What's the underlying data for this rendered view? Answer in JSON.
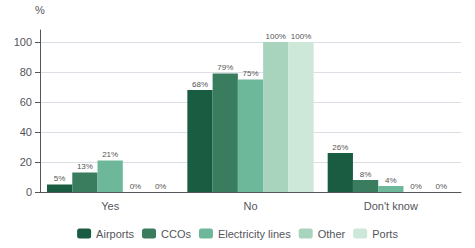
{
  "chart_data": {
    "type": "bar",
    "categories": [
      "Yes",
      "No",
      "Don't know"
    ],
    "series": [
      {
        "name": "Airports",
        "color": "#1a5c42",
        "values": [
          5,
          68,
          26
        ],
        "value_labels": [
          "5%",
          "68%",
          "26%"
        ]
      },
      {
        "name": "CCOs",
        "color": "#3a7d5e",
        "values": [
          13,
          79,
          8
        ],
        "value_labels": [
          "13%",
          "79%",
          "8%"
        ]
      },
      {
        "name": "Electricity lines",
        "color": "#6db89a",
        "values": [
          21,
          75,
          4
        ],
        "value_labels": [
          "21%",
          "75%",
          "4%"
        ]
      },
      {
        "name": "Other",
        "color": "#a8d4be",
        "values": [
          0,
          100,
          0
        ],
        "value_labels": [
          "0%",
          "100%",
          "0%"
        ]
      },
      {
        "name": "Ports",
        "color": "#cde8d8",
        "values": [
          0,
          100,
          0
        ],
        "value_labels": [
          "0%",
          "100%",
          "0%"
        ]
      }
    ],
    "ylabel": "%",
    "ylim": [
      0,
      108
    ],
    "yticks": [
      0,
      20,
      40,
      60,
      80,
      100
    ],
    "grid": true,
    "data_labels": true,
    "legend": "bottom"
  }
}
